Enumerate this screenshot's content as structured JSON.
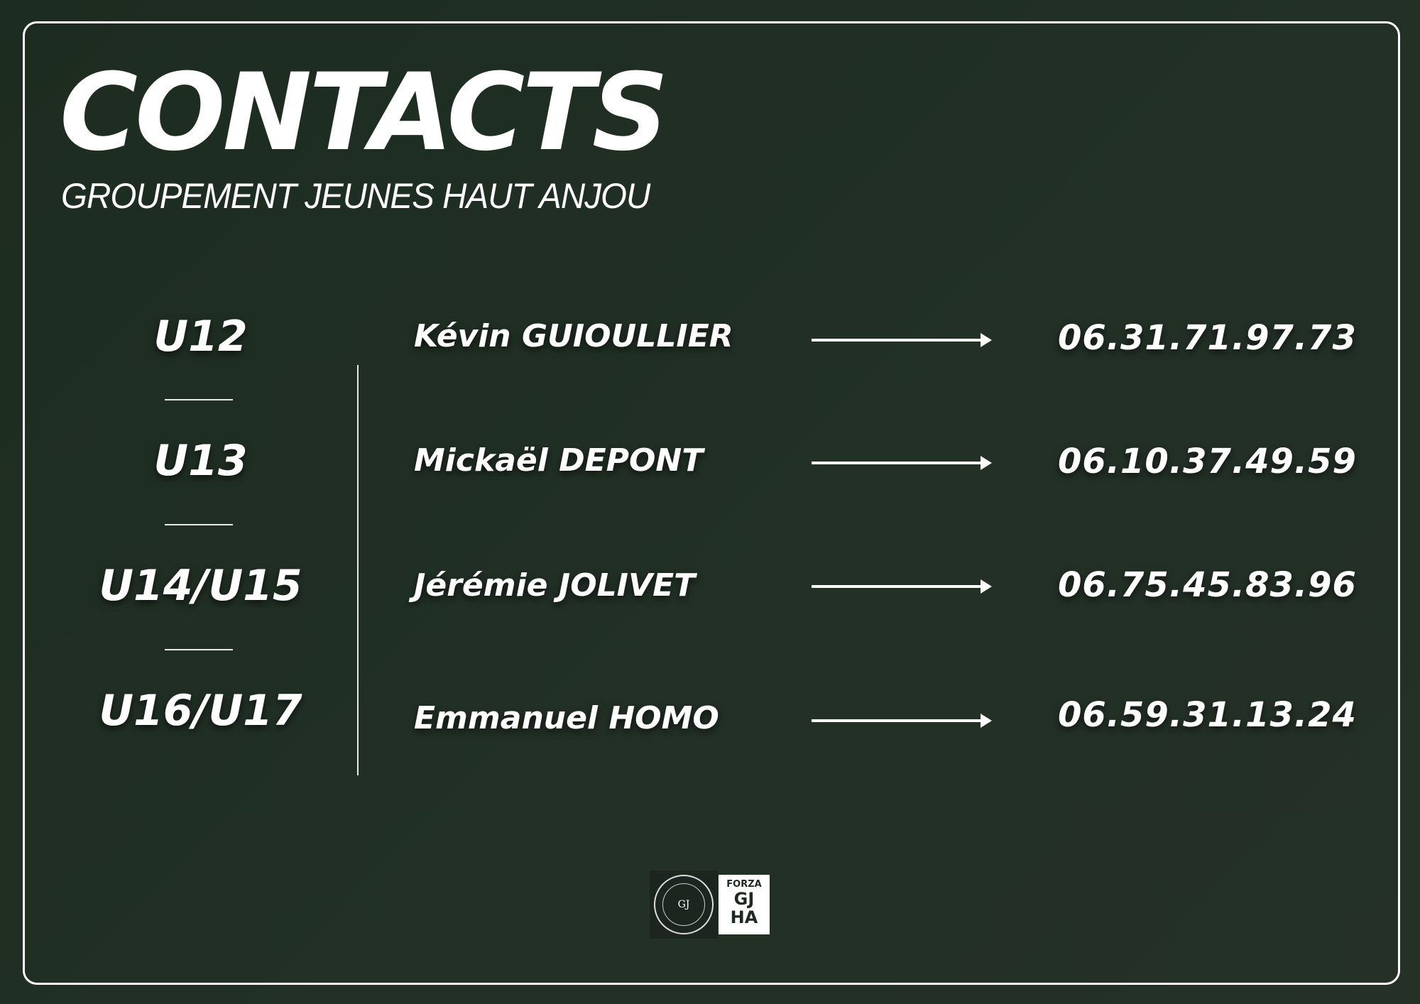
{
  "header": {
    "title": "CONTACTS",
    "subtitle": "GROUPEMENT JEUNES HAUT ANJOU"
  },
  "contacts": [
    {
      "category": "U12",
      "name": "Kévin GUIOULLIER",
      "phone": "06.31.71.97.73"
    },
    {
      "category": "U13",
      "name": "Mickaël DEPONT",
      "phone": "06.10.37.49.59"
    },
    {
      "category": "U14/U15",
      "name": "Jérémie JOLIVET",
      "phone": "06.75.45.83.96"
    },
    {
      "category": "U16/U17",
      "name": "Emmanuel HOMO",
      "phone": "06.59.31.13.24"
    }
  ],
  "logos": {
    "club": "GJ Haut Anjou",
    "forza": [
      "FORZA",
      "GJ",
      "HA"
    ]
  },
  "colors": {
    "background": "#212f25",
    "text": "#ffffff"
  }
}
